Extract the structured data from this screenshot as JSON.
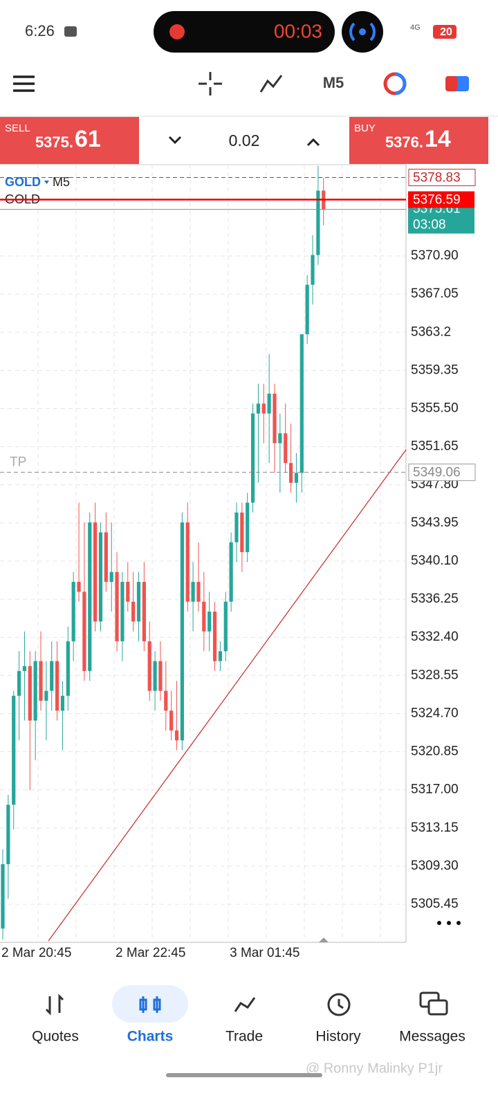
{
  "status_bar": {
    "time": "6:26",
    "recording_timer": "00:03",
    "network": "4G",
    "battery": "20"
  },
  "toolbar": {
    "timeframe": "M5"
  },
  "trade_panel": {
    "sell": {
      "label": "SELL",
      "price_main": "5375.",
      "price_big": "61"
    },
    "lot": "0.02",
    "buy": {
      "label": "BUY",
      "price_main": "5376.",
      "price_big": "14"
    }
  },
  "chart_data": {
    "type": "candlestick",
    "symbol": "GOLD",
    "timeframe": "M5",
    "symbol_label": "GOLD",
    "categories": [
      "2 Mar 20:45",
      null,
      null,
      null,
      null,
      null,
      null,
      null,
      null,
      null,
      null,
      null,
      null,
      null,
      null,
      null,
      null,
      null,
      null,
      null,
      null,
      "2 Mar 22:45",
      null,
      null,
      null,
      null,
      null,
      null,
      null,
      null,
      null,
      null,
      null,
      null,
      null,
      null,
      null,
      null,
      null,
      null,
      null,
      null,
      "3 Mar 01:45",
      null,
      null,
      null,
      null,
      null,
      null,
      null,
      null,
      null,
      null,
      null,
      null,
      null,
      null,
      null,
      null,
      null
    ],
    "open": [
      5303.0,
      5309.5,
      5315.5,
      5326.5,
      5329,
      5329.5,
      5324,
      5330,
      5326,
      5327,
      5330,
      5325,
      5326.5,
      5332,
      5338,
      5337,
      5329,
      5344,
      5334,
      5343,
      5338,
      5339,
      5332,
      5338,
      5336,
      5334,
      5338,
      5332,
      5327,
      5330,
      5327,
      5325,
      5323,
      5322,
      5344,
      5336,
      5338,
      5336,
      5333,
      5335,
      5330,
      5331,
      5336,
      5342,
      5345,
      5341,
      5346,
      5355,
      5356,
      5355,
      5357,
      5352,
      5353,
      5350,
      5348,
      5349,
      5363,
      5368,
      5371,
      5377.5
    ],
    "high": [
      5311,
      5316.5,
      5327,
      5331,
      5333,
      5331,
      5331,
      5333,
      5330,
      5332,
      5332,
      5328,
      5333.5,
      5339,
      5346,
      5344,
      5345,
      5346,
      5344,
      5345,
      5344,
      5341,
      5339,
      5340,
      5339,
      5339,
      5340,
      5334,
      5331,
      5332,
      5330,
      5327,
      5328,
      5345,
      5346,
      5340,
      5342,
      5339,
      5337,
      5336,
      5332,
      5337,
      5343,
      5346,
      5346,
      5347,
      5356,
      5358,
      5358,
      5361,
      5358,
      5355,
      5356,
      5354,
      5351,
      5363,
      5369,
      5373,
      5380,
      5378.8
    ],
    "low": [
      5301.9,
      5306,
      5313,
      5322,
      5324,
      5317,
      5320,
      5325,
      5322,
      5325,
      5324,
      5321,
      5325,
      5330,
      5336,
      5328,
      5328,
      5333,
      5333,
      5337,
      5335,
      5331,
      5330,
      5335,
      5333,
      5332,
      5331,
      5326,
      5325,
      5326,
      5323,
      5322,
      5321,
      5321,
      5335,
      5333,
      5335,
      5331,
      5331,
      5329,
      5329,
      5330,
      5335,
      5340,
      5339,
      5340,
      5345,
      5348,
      5352,
      5350,
      5349,
      5347,
      5349,
      5347,
      5346,
      5347,
      5362,
      5366,
      5370,
      5374
    ],
    "close": [
      5309.5,
      5315.5,
      5326.5,
      5329,
      5329.5,
      5324,
      5330,
      5326,
      5327,
      5330,
      5325,
      5326.5,
      5332,
      5338,
      5337,
      5329,
      5344,
      5334,
      5343,
      5338,
      5339,
      5332,
      5338,
      5336,
      5334,
      5338,
      5332,
      5327,
      5330,
      5327,
      5325,
      5323,
      5322,
      5344,
      5336,
      5338,
      5336,
      5333,
      5335,
      5330,
      5331,
      5336,
      5342,
      5345,
      5341,
      5346,
      5355,
      5356,
      5355,
      5357,
      5352,
      5353,
      5350,
      5348,
      5349,
      5363,
      5368,
      5371,
      5377.5,
      5375.6
    ],
    "up_color": "#26a69a",
    "down_color": "#ef5350",
    "ylim": [
      5301.75,
      5380.12
    ],
    "yticks": [
      {
        "value": 5370.9,
        "label": "5370.90"
      },
      5367.05,
      5363.2,
      5359.35,
      {
        "value": 5355.5,
        "label": "5355.50"
      },
      5351.65,
      {
        "value": 5347.8,
        "label": "5347.80"
      },
      5343.95,
      {
        "value": 5340.1,
        "label": "5340.10"
      },
      5336.25,
      {
        "value": 5332.4,
        "label": "5332.40"
      },
      5328.55,
      {
        "value": 5324.7,
        "label": "5324.70"
      },
      5320.85,
      {
        "value": 5317,
        "label": "5317.00"
      },
      5313.15,
      {
        "value": 5309.3,
        "label": "5309.30"
      },
      5305.45
    ],
    "grid": true,
    "levels": {
      "stop": 5378.83,
      "current": 5376.59,
      "bid": 5375.61,
      "tp": 5349.06
    },
    "bar_timer": "03:08",
    "tp_label": "TP"
  },
  "nav": {
    "items": [
      "Quotes",
      "Charts",
      "Trade",
      "History",
      "Messages"
    ],
    "active": 1
  },
  "watermark": "@ Ronny Malinky P1jr"
}
